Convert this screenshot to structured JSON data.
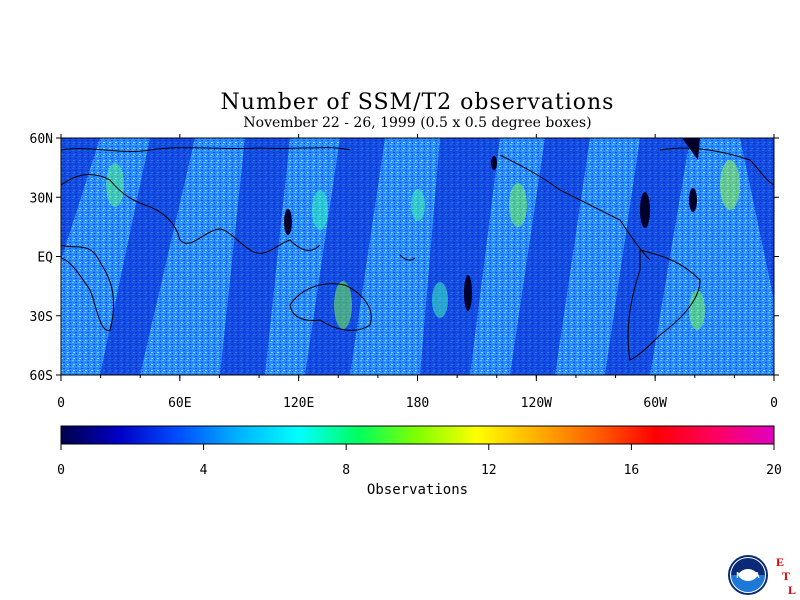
{
  "header": {
    "title": "Number of SSM/T2 observations",
    "subtitle": "November 22 - 26, 1999 (0.5 x 0.5 degree boxes)"
  },
  "map": {
    "lat_ticks": [
      "60N",
      "30N",
      "EQ",
      "30S",
      "60S"
    ],
    "lat_values": [
      60,
      30,
      0,
      -30,
      -60
    ],
    "lon_ticks": [
      "0",
      "60E",
      "120E",
      "180",
      "120W",
      "60W",
      "0"
    ],
    "lon_values": [
      0,
      60,
      120,
      180,
      240,
      300,
      360
    ],
    "lat_range": [
      -60,
      60
    ],
    "lon_range": [
      0,
      360
    ]
  },
  "colorbar": {
    "label": "Observations",
    "ticks": [
      "0",
      "4",
      "8",
      "12",
      "16",
      "20"
    ],
    "tick_values": [
      0,
      4,
      8,
      12,
      16,
      20
    ],
    "range": [
      0,
      20
    ],
    "colors": [
      "#00004a",
      "#0000c8",
      "#0050ff",
      "#00b4ff",
      "#00ffff",
      "#00ff60",
      "#80ff00",
      "#ffff00",
      "#ffb000",
      "#ff6000",
      "#ff0000",
      "#ff0060",
      "#e000c0"
    ]
  },
  "logo": {
    "icon": "noaa-logo-icon",
    "text": "NOAA",
    "letters": [
      "E",
      "T",
      "L"
    ],
    "accent": "#e00000"
  }
}
